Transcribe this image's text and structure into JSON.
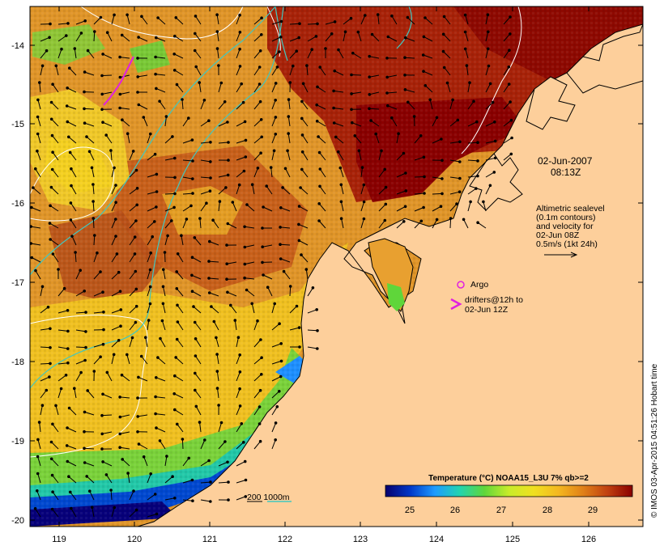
{
  "map": {
    "date_line1": "02-Jun-2007",
    "date_line2": "08:13Z",
    "sealevel_note": [
      "Altimetric sealevel",
      "(0.1m contours)",
      "and velocity for",
      "02-Jun 08Z",
      "0.5m/s (1kt 24h)"
    ],
    "argo_label": "Argo",
    "drifters_line1": "drifters@12h to",
    "drifters_line2": "02-Jun 12Z",
    "depth_label": "200  1000m",
    "legend_title": "Temperature (°C) NOAA15_L3U 7% qb>=2",
    "legend_ticks": [
      "25",
      "26",
      "27",
      "28",
      "29"
    ],
    "legend_colors": [
      "#06006e",
      "#0038c8",
      "#1e9bff",
      "#22d4b0",
      "#5fd63a",
      "#c8ec2a",
      "#f0e020",
      "#f4b820",
      "#e08018",
      "#c04010",
      "#8a0000"
    ],
    "credit": "© IMOS 03-Apr-2015 04:51:26 Hobart time",
    "x_ticks": [
      "119",
      "120",
      "121",
      "122",
      "123",
      "124",
      "125",
      "126"
    ],
    "y_ticks": [
      "-14",
      "-15",
      "-16",
      "-17",
      "-18",
      "-19",
      "-20"
    ],
    "colors": {
      "land": "#fdcf9b",
      "argo": "#e020e0",
      "bathymetry": "#40c8c0"
    }
  }
}
